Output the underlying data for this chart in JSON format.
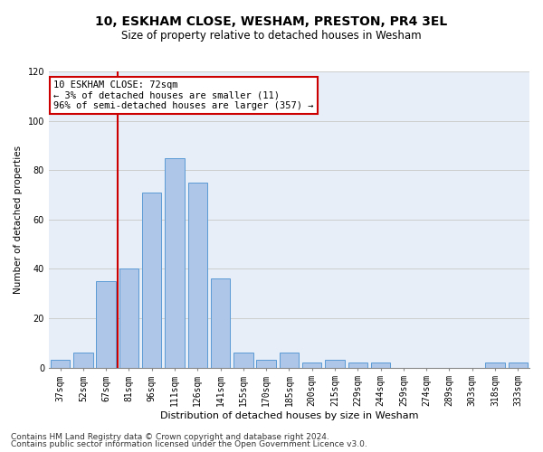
{
  "title1": "10, ESKHAM CLOSE, WESHAM, PRESTON, PR4 3EL",
  "title2": "Size of property relative to detached houses in Wesham",
  "xlabel": "Distribution of detached houses by size in Wesham",
  "ylabel": "Number of detached properties",
  "categories": [
    "37sqm",
    "52sqm",
    "67sqm",
    "81sqm",
    "96sqm",
    "111sqm",
    "126sqm",
    "141sqm",
    "155sqm",
    "170sqm",
    "185sqm",
    "200sqm",
    "215sqm",
    "229sqm",
    "244sqm",
    "259sqm",
    "274sqm",
    "289sqm",
    "303sqm",
    "318sqm",
    "333sqm"
  ],
  "values": [
    3,
    6,
    35,
    40,
    71,
    85,
    75,
    36,
    6,
    3,
    6,
    2,
    3,
    2,
    2,
    0,
    0,
    0,
    0,
    2,
    2
  ],
  "bar_color": "#aec6e8",
  "bar_edge_color": "#5b9bd5",
  "annotation_text": "10 ESKHAM CLOSE: 72sqm\n← 3% of detached houses are smaller (11)\n96% of semi-detached houses are larger (357) →",
  "annotation_box_color": "#ffffff",
  "annotation_box_edge_color": "#cc0000",
  "vline_color": "#cc0000",
  "vline_x_index": 2,
  "ylim": [
    0,
    120
  ],
  "yticks": [
    0,
    20,
    40,
    60,
    80,
    100,
    120
  ],
  "grid_color": "#cccccc",
  "background_color": "#e8eef8",
  "footer1": "Contains HM Land Registry data © Crown copyright and database right 2024.",
  "footer2": "Contains public sector information licensed under the Open Government Licence v3.0.",
  "title1_fontsize": 10,
  "title2_fontsize": 8.5,
  "xlabel_fontsize": 8,
  "ylabel_fontsize": 7.5,
  "tick_fontsize": 7,
  "footer_fontsize": 6.5,
  "annotation_fontsize": 7.5
}
